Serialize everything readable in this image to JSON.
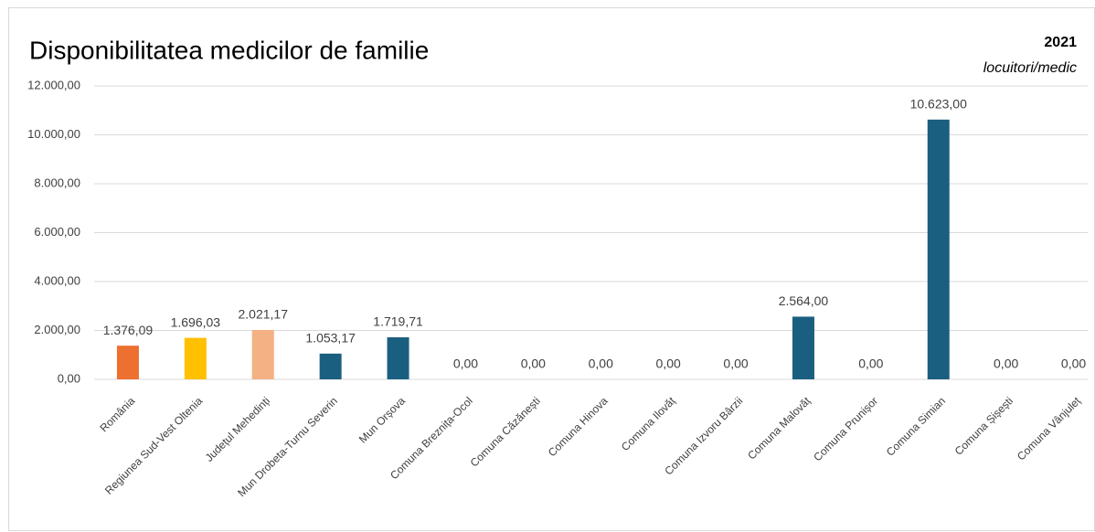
{
  "chart_data": {
    "type": "bar",
    "title": "Disponibilitatea medicilor de familie",
    "subtitle": "2021",
    "unit_label": "locuitori/medic",
    "categories": [
      "România",
      "Regiunea Sud-Vest Oltenia",
      "Județul Mehedinți",
      "Mun Drobeta-Turnu Severin",
      "Mun Orșova",
      "Comuna Breznița-Ocol",
      "Comuna Căzănești",
      "Comuna Hinova",
      "Comuna Ilovăț",
      "Comuna Izvoru Bârzii",
      "Comuna Malovăț",
      "Comuna Prunișor",
      "Comuna Simian",
      "Comuna Șișești",
      "Comuna Vânjuleț"
    ],
    "values": [
      1376.09,
      1696.03,
      2021.17,
      1053.17,
      1719.71,
      0,
      0,
      0,
      0,
      0,
      2564,
      0,
      10623,
      0,
      0
    ],
    "value_labels": [
      "1.376,09",
      "1.696,03",
      "2.021,17",
      "1.053,17",
      "1.719,71",
      "0,00",
      "0,00",
      "0,00",
      "0,00",
      "0,00",
      "2.564,00",
      "0,00",
      "10.623,00",
      "0,00",
      "0,00"
    ],
    "colors": [
      "#ed7031",
      "#ffc000",
      "#f4b183",
      "#1b5f80",
      "#1b5f80",
      "#1b5f80",
      "#1b5f80",
      "#1b5f80",
      "#1b5f80",
      "#1b5f80",
      "#1b5f80",
      "#1b5f80",
      "#1b5f80",
      "#1b5f80",
      "#1b5f80"
    ],
    "ylim": [
      0,
      12000
    ],
    "yticks": [
      {
        "value": 0,
        "label": "0,00"
      },
      {
        "value": 2000,
        "label": "2.000,00"
      },
      {
        "value": 4000,
        "label": "4.000,00"
      },
      {
        "value": 6000,
        "label": "6.000,00"
      },
      {
        "value": 8000,
        "label": "8.000,00"
      },
      {
        "value": 10000,
        "label": "10.000,00"
      },
      {
        "value": 12000,
        "label": "12.000,00"
      }
    ],
    "grid": true
  }
}
